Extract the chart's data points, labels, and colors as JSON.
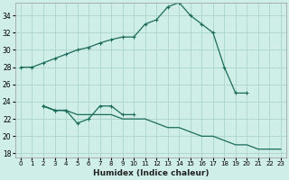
{
  "xlabel": "Humidex (Indice chaleur)",
  "bg_color": "#d0eee8",
  "grid_color": "#b0d8cc",
  "line_color": "#1a6b5a",
  "line1_x": [
    0,
    1,
    2,
    3,
    4,
    5,
    6,
    7,
    8,
    9,
    10,
    11,
    12,
    13,
    14,
    15,
    16,
    17,
    18,
    19,
    20
  ],
  "line1_y": [
    28,
    28,
    28.5,
    29,
    29.5,
    30,
    30.3,
    30.8,
    31.2,
    31.5,
    31.5,
    33,
    33.5,
    35,
    35.5,
    34,
    33,
    32,
    28,
    25,
    25
  ],
  "line2_x": [
    2,
    3,
    4,
    5,
    6,
    7,
    8,
    9,
    10,
    11,
    12,
    13,
    14,
    15,
    16,
    17,
    18,
    19,
    20,
    21,
    22,
    23
  ],
  "line2_y": [
    23.5,
    23,
    23,
    22.5,
    22.5,
    22.5,
    22.5,
    22,
    22,
    22,
    21.5,
    21,
    21,
    20.5,
    20,
    20,
    19.5,
    19,
    19,
    18.5,
    18.5,
    18.5
  ],
  "line3_x": [
    2,
    3,
    4,
    5,
    6,
    7,
    8,
    9,
    10
  ],
  "line3_y": [
    23.5,
    23,
    23,
    21.5,
    22,
    23.5,
    23.5,
    22.5,
    22.5
  ],
  "line4_x": [
    2,
    3,
    4
  ],
  "line4_y": [
    23.5,
    23,
    23
  ],
  "ylim": [
    17.5,
    35.5
  ],
  "yticks": [
    18,
    20,
    22,
    24,
    26,
    28,
    30,
    32,
    34
  ],
  "xlim": [
    -0.5,
    23.5
  ],
  "xticks": [
    0,
    1,
    2,
    3,
    4,
    5,
    6,
    7,
    8,
    9,
    10,
    11,
    12,
    13,
    14,
    15,
    16,
    17,
    18,
    19,
    20,
    21,
    22,
    23
  ]
}
